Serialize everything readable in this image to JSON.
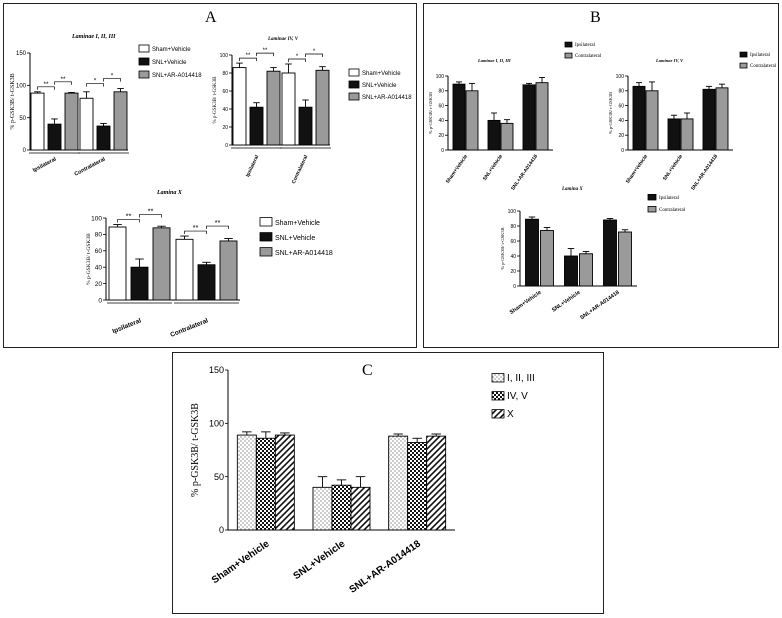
{
  "panels": {
    "A": {
      "label": "A",
      "charts": [
        {
          "type": "bar",
          "title": "Laminae I, II, III",
          "ylabel": "% p-GSK3B/ t-GSK3B",
          "ylim": [
            0,
            150
          ],
          "yticks": [
            0,
            50,
            100,
            150
          ],
          "categories": [
            "Ipsilateral",
            "Contralateral"
          ],
          "series": [
            {
              "name": "Sham+Vehicle",
              "values": [
                88,
                80
              ],
              "errors": [
                2,
                10
              ]
            },
            {
              "name": "SNL+Vehicle",
              "values": [
                40,
                37
              ],
              "errors": [
                8,
                4
              ]
            },
            {
              "name": "SNL+AR-A014418",
              "values": [
                88,
                90
              ],
              "errors": [
                1,
                5
              ]
            }
          ],
          "annotations": [
            "**",
            "**",
            "*",
            "*"
          ]
        },
        {
          "type": "bar",
          "title": "Laminae IV, V",
          "ylabel": "% p-GSK3B/ t-GSK3B",
          "ylim": [
            0,
            100
          ],
          "yticks": [
            0,
            20,
            40,
            60,
            80,
            100
          ],
          "categories": [
            "Ipsilateral",
            "Contralateral"
          ],
          "series": [
            {
              "name": "Sham+Vehicle",
              "values": [
                86,
                80
              ],
              "errors": [
                5,
                10
              ]
            },
            {
              "name": "SNL+Vehicle",
              "values": [
                42,
                42
              ],
              "errors": [
                5,
                8
              ]
            },
            {
              "name": "SNL+AR-A014418",
              "values": [
                82,
                83
              ],
              "errors": [
                4,
                4
              ]
            }
          ],
          "annotations": [
            "**",
            "**",
            "*",
            "*"
          ]
        },
        {
          "type": "bar",
          "title": "Lamina X",
          "ylabel": "% p-GSK3B/ t-GSK3B",
          "ylim": [
            0,
            100
          ],
          "yticks": [
            0,
            20,
            40,
            60,
            80,
            100
          ],
          "categories": [
            "Ipsilateral",
            "Contralateral"
          ],
          "series": [
            {
              "name": "Sham+Vehicle",
              "values": [
                89,
                74
              ],
              "errors": [
                3,
                4
              ]
            },
            {
              "name": "SNL+Vehicle",
              "values": [
                40,
                43
              ],
              "errors": [
                10,
                3
              ]
            },
            {
              "name": "SNL+AR-A014418",
              "values": [
                88,
                72
              ],
              "errors": [
                2,
                3
              ]
            }
          ],
          "annotations": [
            "**",
            "**",
            "**",
            "**"
          ]
        }
      ]
    },
    "B": {
      "label": "B",
      "charts": [
        {
          "type": "bar",
          "title": "Laminae I, II, III",
          "ylabel": "% p-GSK3B/ t-GSK3B",
          "ylim": [
            0,
            100
          ],
          "yticks": [
            0,
            20,
            40,
            60,
            80,
            100
          ],
          "categories": [
            "Sham+Vehicle",
            "SNL+Vehicle",
            "SNL+AR-A014418"
          ],
          "series": [
            {
              "name": "Ipsilateral",
              "values": [
                89,
                40,
                88
              ],
              "errors": [
                3,
                10,
                2
              ]
            },
            {
              "name": "Contralateral",
              "values": [
                80,
                36,
                91
              ],
              "errors": [
                10,
                5,
                7
              ]
            }
          ]
        },
        {
          "type": "bar",
          "title": "Laminae IV, V",
          "ylabel": "% p-GSK3B/ t-GSK3B",
          "ylim": [
            0,
            100
          ],
          "yticks": [
            0,
            20,
            40,
            60,
            80,
            100
          ],
          "categories": [
            "Sham+Vehicle",
            "SNL+Vehicle",
            "SNL+AR-A014418"
          ],
          "series": [
            {
              "name": "Ipsilateral",
              "values": [
                86,
                42,
                82
              ],
              "errors": [
                5,
                5,
                4
              ]
            },
            {
              "name": "Contralateral",
              "values": [
                80,
                42,
                84
              ],
              "errors": [
                12,
                8,
                5
              ]
            }
          ]
        },
        {
          "type": "bar",
          "title": "Lamina X",
          "ylabel": "% p-GSK3B/ t-GSK3B",
          "ylim": [
            0,
            100
          ],
          "yticks": [
            0,
            20,
            40,
            60,
            80,
            100
          ],
          "categories": [
            "Sham+Vehicle",
            "SNL+Vehicle",
            "SNL+AR-A014418"
          ],
          "series": [
            {
              "name": "Ipsilateral",
              "values": [
                89,
                40,
                88
              ],
              "errors": [
                3,
                10,
                2
              ]
            },
            {
              "name": "Contralateral",
              "values": [
                74,
                43,
                72
              ],
              "errors": [
                4,
                3,
                3
              ]
            }
          ]
        }
      ]
    },
    "C": {
      "label": "C",
      "charts": [
        {
          "type": "bar",
          "title": "",
          "ylabel": "% p-GSK3B/ t-GSK3B",
          "ylim": [
            0,
            150
          ],
          "yticks": [
            0,
            50,
            100,
            150
          ],
          "categories": [
            "Sham+Vehicle",
            "SNL+Vehicle",
            "SNL+AR-A014418"
          ],
          "series": [
            {
              "name": "I, II, III",
              "values": [
                89,
                40,
                88
              ],
              "errors": [
                3,
                10,
                2
              ]
            },
            {
              "name": "IV, V",
              "values": [
                86,
                42,
                82
              ],
              "errors": [
                6,
                5,
                4
              ]
            },
            {
              "name": "X",
              "values": [
                89,
                40,
                88
              ],
              "errors": [
                2,
                10,
                2
              ]
            }
          ]
        }
      ]
    }
  },
  "colors": {
    "black": "#111111",
    "gray": "#9a9a9a",
    "white": "#ffffff"
  }
}
